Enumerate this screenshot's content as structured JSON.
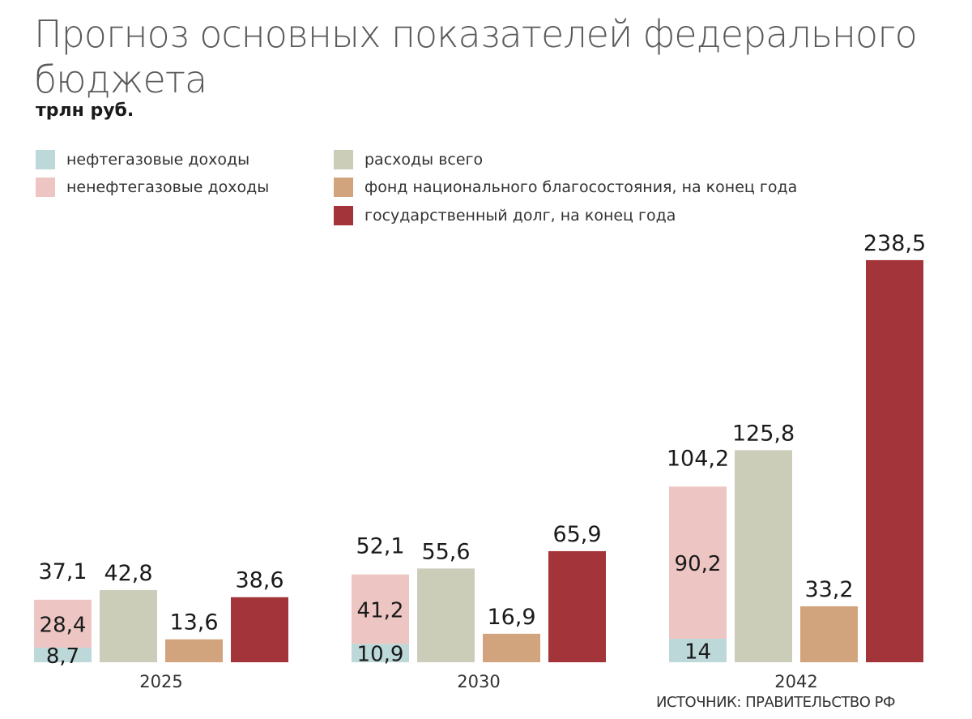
{
  "chart_data": {
    "type": "bar",
    "title": "Прогноз основных показателей федерального бюджета",
    "ylabel": "трлн руб.",
    "categories": [
      "2025",
      "2030",
      "2042"
    ],
    "series": [
      {
        "name": "нефтегазовые доходы",
        "color": "#bcd8d8",
        "values": [
          8.7,
          10.9,
          14
        ],
        "labels": [
          "8,7",
          "10,9",
          "14"
        ],
        "stack": "revenue"
      },
      {
        "name": "ненефтегазовые доходы",
        "color": "#edc6c3",
        "values": [
          28.4,
          41.2,
          90.2
        ],
        "labels": [
          "28,4",
          "41,2",
          "90,2"
        ],
        "stack": "revenue"
      },
      {
        "name": "расходы всего",
        "color": "#cccdb9",
        "values": [
          42.8,
          55.6,
          125.8
        ],
        "labels": [
          "42,8",
          "55,6",
          "125,8"
        ]
      },
      {
        "name": "фонд национального благосостояния, на конец года",
        "color": "#d2a47e",
        "values": [
          13.6,
          16.9,
          33.2
        ],
        "labels": [
          "13,6",
          "16,9",
          "33,2"
        ]
      },
      {
        "name": "государственный долг, на конец года",
        "color": "#a3353a",
        "values": [
          38.6,
          65.9,
          238.5
        ],
        "labels": [
          "38,6",
          "65,9",
          "238,5"
        ]
      }
    ],
    "revenue_totals": {
      "values": [
        37.1,
        52.1,
        104.2
      ],
      "labels": [
        "37,1",
        "52,1",
        "104,2"
      ]
    },
    "source": "ИСТОЧНИК: ПРАВИТЕЛЬСТВО РФ"
  }
}
